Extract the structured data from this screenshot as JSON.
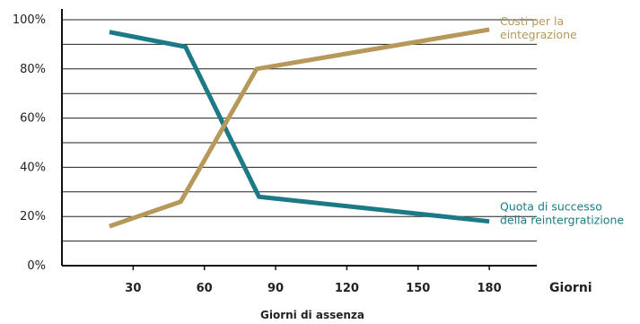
{
  "chart_data": {
    "type": "line",
    "title": "",
    "xlabel": "Giorni di assenza",
    "x_unit_label": "Giorni",
    "ylabel": "",
    "xlim": [
      0,
      200
    ],
    "ylim": [
      0,
      100
    ],
    "x_ticks": [
      30,
      60,
      90,
      120,
      150,
      180
    ],
    "y_ticks": [
      "0%",
      "20%",
      "40%",
      "60%",
      "80%",
      "100%"
    ],
    "grid": true,
    "legend": "inline labels at line ends",
    "series": [
      {
        "name": "Quota di successo della reintergratizione",
        "label_lines": [
          "Quota di successo",
          "della reintergratizione"
        ],
        "color": "#1b7a86",
        "x": [
          20,
          52,
          83,
          180
        ],
        "y": [
          95,
          89,
          28,
          18
        ]
      },
      {
        "name": "Costi per la eintegrazione",
        "label_lines": [
          "Costi per la",
          "eintegrazione"
        ],
        "color": "#b6995a",
        "x": [
          20,
          50,
          82,
          180
        ],
        "y": [
          16,
          26,
          80,
          96
        ]
      }
    ]
  }
}
